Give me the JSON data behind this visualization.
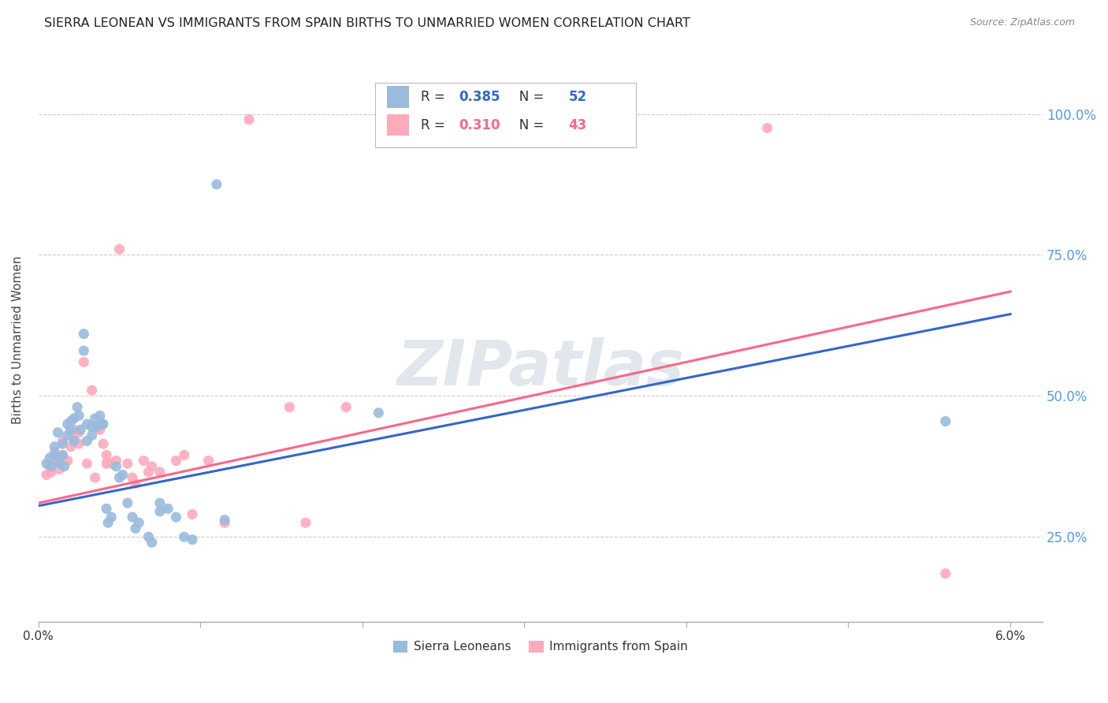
{
  "title": "SIERRA LEONEAN VS IMMIGRANTS FROM SPAIN BIRTHS TO UNMARRIED WOMEN CORRELATION CHART",
  "source": "Source: ZipAtlas.com",
  "ylabel": "Births to Unmarried Women",
  "legend_label1": "Sierra Leoneans",
  "legend_label2": "Immigrants from Spain",
  "R1": 0.385,
  "N1": 52,
  "R2": 0.31,
  "N2": 43,
  "color_blue": "#99BBDD",
  "color_pink": "#FFAABB",
  "line_blue": "#3366CC",
  "line_pink": "#FF6688",
  "watermark": "ZIPatlas",
  "blue_points": [
    [
      0.0005,
      0.38
    ],
    [
      0.0007,
      0.39
    ],
    [
      0.0008,
      0.375
    ],
    [
      0.001,
      0.41
    ],
    [
      0.001,
      0.395
    ],
    [
      0.0012,
      0.435
    ],
    [
      0.0013,
      0.38
    ],
    [
      0.0015,
      0.415
    ],
    [
      0.0015,
      0.395
    ],
    [
      0.0016,
      0.375
    ],
    [
      0.0018,
      0.45
    ],
    [
      0.0018,
      0.43
    ],
    [
      0.002,
      0.455
    ],
    [
      0.002,
      0.44
    ],
    [
      0.0022,
      0.46
    ],
    [
      0.0022,
      0.42
    ],
    [
      0.0024,
      0.48
    ],
    [
      0.0025,
      0.465
    ],
    [
      0.0026,
      0.44
    ],
    [
      0.0028,
      0.61
    ],
    [
      0.0028,
      0.58
    ],
    [
      0.003,
      0.45
    ],
    [
      0.003,
      0.42
    ],
    [
      0.0033,
      0.445
    ],
    [
      0.0033,
      0.43
    ],
    [
      0.0035,
      0.46
    ],
    [
      0.0036,
      0.445
    ],
    [
      0.0038,
      0.465
    ],
    [
      0.0039,
      0.45
    ],
    [
      0.004,
      0.45
    ],
    [
      0.0042,
      0.3
    ],
    [
      0.0043,
      0.275
    ],
    [
      0.0045,
      0.285
    ],
    [
      0.0048,
      0.375
    ],
    [
      0.005,
      0.355
    ],
    [
      0.0052,
      0.36
    ],
    [
      0.0055,
      0.31
    ],
    [
      0.0058,
      0.285
    ],
    [
      0.006,
      0.265
    ],
    [
      0.0062,
      0.275
    ],
    [
      0.0068,
      0.25
    ],
    [
      0.007,
      0.24
    ],
    [
      0.0075,
      0.31
    ],
    [
      0.0075,
      0.295
    ],
    [
      0.008,
      0.3
    ],
    [
      0.0085,
      0.285
    ],
    [
      0.009,
      0.25
    ],
    [
      0.0095,
      0.245
    ],
    [
      0.011,
      0.875
    ],
    [
      0.0115,
      0.28
    ],
    [
      0.021,
      0.47
    ],
    [
      0.056,
      0.455
    ]
  ],
  "pink_points": [
    [
      0.0005,
      0.36
    ],
    [
      0.0007,
      0.375
    ],
    [
      0.0008,
      0.365
    ],
    [
      0.001,
      0.4
    ],
    [
      0.0012,
      0.385
    ],
    [
      0.0013,
      0.37
    ],
    [
      0.0015,
      0.42
    ],
    [
      0.0015,
      0.395
    ],
    [
      0.0018,
      0.385
    ],
    [
      0.002,
      0.41
    ],
    [
      0.0022,
      0.44
    ],
    [
      0.0022,
      0.425
    ],
    [
      0.0025,
      0.435
    ],
    [
      0.0025,
      0.415
    ],
    [
      0.0028,
      0.56
    ],
    [
      0.003,
      0.38
    ],
    [
      0.0033,
      0.51
    ],
    [
      0.0035,
      0.355
    ],
    [
      0.0038,
      0.44
    ],
    [
      0.004,
      0.415
    ],
    [
      0.0042,
      0.38
    ],
    [
      0.0042,
      0.395
    ],
    [
      0.0045,
      0.38
    ],
    [
      0.0048,
      0.385
    ],
    [
      0.005,
      0.76
    ],
    [
      0.0055,
      0.38
    ],
    [
      0.0058,
      0.355
    ],
    [
      0.006,
      0.345
    ],
    [
      0.0065,
      0.385
    ],
    [
      0.0068,
      0.365
    ],
    [
      0.007,
      0.375
    ],
    [
      0.0075,
      0.365
    ],
    [
      0.0085,
      0.385
    ],
    [
      0.009,
      0.395
    ],
    [
      0.0095,
      0.29
    ],
    [
      0.0105,
      0.385
    ],
    [
      0.0115,
      0.275
    ],
    [
      0.013,
      0.99
    ],
    [
      0.0155,
      0.48
    ],
    [
      0.0165,
      0.275
    ],
    [
      0.019,
      0.48
    ],
    [
      0.045,
      0.975
    ],
    [
      0.056,
      0.185
    ]
  ],
  "blue_line": [
    0.0,
    0.305,
    0.06,
    0.645
  ],
  "pink_line": [
    0.0,
    0.31,
    0.06,
    0.685
  ],
  "xlim": [
    0.0,
    0.062
  ],
  "ylim": [
    0.1,
    1.1
  ],
  "xtick_vals": [
    0.0,
    0.01,
    0.02,
    0.03,
    0.04,
    0.05,
    0.06
  ],
  "ytick_vals": [
    0.25,
    0.5,
    0.75,
    1.0
  ],
  "ytick_labels": [
    "25.0%",
    "50.0%",
    "75.0%",
    "100.0%"
  ],
  "grid_color": "#CCCCCC",
  "background_color": "#FFFFFF",
  "title_fontsize": 11.5,
  "source_fontsize": 9,
  "watermark_color": "#AABBCC",
  "watermark_alpha": 0.35,
  "watermark_fontsize": 58,
  "scatter_size": 90
}
